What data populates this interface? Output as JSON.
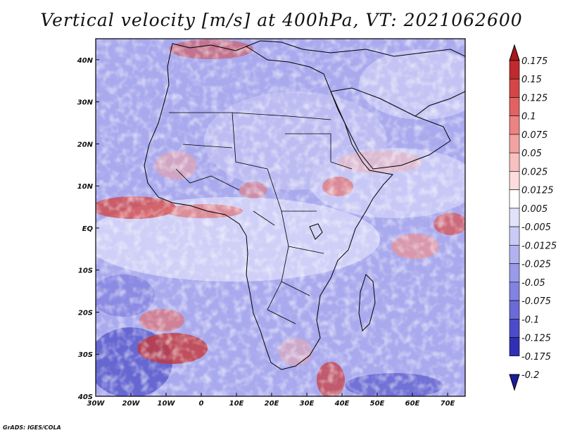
{
  "title": "Vertical velocity [m/s] at 400hPa, VT: 2021062600",
  "credit": "GrADS: IGES/COLA",
  "map": {
    "lon_range": [
      -30,
      75
    ],
    "lat_range": [
      -40,
      45
    ],
    "x_ticks": [
      "30W",
      "20W",
      "10W",
      "0",
      "10E",
      "20E",
      "30E",
      "40E",
      "50E",
      "60E",
      "70E"
    ],
    "x_tick_values": [
      -30,
      -20,
      -10,
      0,
      10,
      20,
      30,
      40,
      50,
      60,
      70
    ],
    "y_ticks": [
      "40N",
      "30N",
      "20N",
      "10N",
      "EQ",
      "10S",
      "20S",
      "30S",
      "40S"
    ],
    "y_tick_values": [
      40,
      30,
      20,
      10,
      0,
      -10,
      -20,
      -30,
      -40
    ]
  },
  "colorbar": {
    "labels": [
      "0.175",
      "0.15",
      "0.125",
      "0.1",
      "0.075",
      "0.05",
      "0.025",
      "0.0125",
      "0.005",
      "-0.005",
      "-0.0125",
      "-0.025",
      "-0.05",
      "-0.075",
      "-0.1",
      "-0.125",
      "-0.175",
      "-0.2"
    ],
    "colors": [
      "#a8171c",
      "#c02a2e",
      "#d44646",
      "#e26262",
      "#ec8282",
      "#f3a2a2",
      "#f8c0c0",
      "#fcdcdc",
      "#ffffff",
      "#e2e2fa",
      "#cacaf6",
      "#b2b2f0",
      "#9a9aea",
      "#8282e2",
      "#6a6ad8",
      "#4c4cca",
      "#3030b6",
      "#1c1c9c"
    ]
  }
}
